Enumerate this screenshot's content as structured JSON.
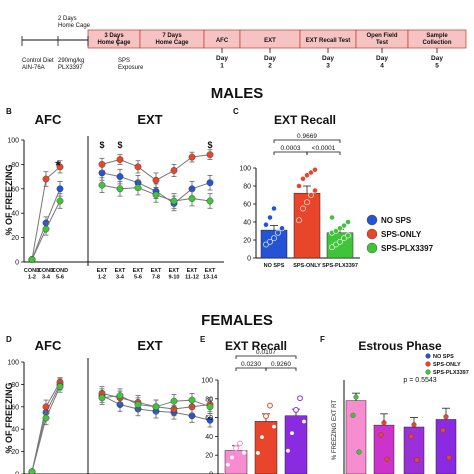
{
  "timeline": {
    "start_label": "Control Diet\nAIN-76A",
    "plx_label": "290mg/kg\nPLX3397",
    "sps_label": "SPS\nExposure",
    "above_labels": [
      "2 Days\nHome Cage"
    ],
    "stages": [
      "3 Days\nHome Cage",
      "7 Days\nHome Cage",
      "AFC",
      "EXT",
      "EXT Recall Test",
      "Open Field\nTest",
      "Sample\nCollection"
    ],
    "day_labels": [
      "Day\n1",
      "Day\n2",
      "Day\n3",
      "Day\n4",
      "Day\n5"
    ]
  },
  "sections": {
    "males": "MALES",
    "females": "FEMALES"
  },
  "panel_letters": {
    "b": "B",
    "c": "C",
    "d": "D",
    "e": "E",
    "f": "F"
  },
  "colors": {
    "no_sps": "#2453d6",
    "sps_only": "#e8452b",
    "sps_plx": "#3fc43a",
    "female_no_sps": "#f78cd0",
    "female_sps_only": "#e8452b",
    "female_sps_plx": "#8a2be2",
    "stage_fill": "#f6c3c3",
    "stage_border": "#c0392b"
  },
  "legend": [
    "NO SPS",
    "SPS-ONLY",
    "SPS-PLX3397"
  ],
  "chart_data": [
    {
      "type": "line",
      "panel": "B",
      "title_afc": "AFC",
      "title_ext": "EXT",
      "ylabel": "% OF FREEZING",
      "ylim": [
        0,
        100
      ],
      "yticks": [
        "0",
        "20",
        "40",
        "60",
        "80",
        "100"
      ],
      "afc_categories": [
        "COND\n1-2",
        "COND\n3-4",
        "COND\n5-6"
      ],
      "ext_categories": [
        "EXT\n1-2",
        "EXT\n3-4",
        "EXT\n5-6",
        "EXT\n7-8",
        "EXT\n9-10",
        "EXT\n11-12",
        "EXT\n13-14"
      ],
      "afc_annotations": [
        {
          "index": 1,
          "text": "*"
        }
      ],
      "ext_annotations": [
        {
          "index": 0,
          "text": "$"
        },
        {
          "index": 1,
          "text": "$"
        },
        {
          "index": 6,
          "text": "$"
        }
      ],
      "series": [
        {
          "name": "NO SPS",
          "color_key": "no_sps",
          "afc": [
            2,
            32,
            60
          ],
          "afc_err": [
            1,
            5,
            6
          ],
          "ext": [
            73,
            70,
            65,
            58,
            48,
            60,
            65
          ],
          "ext_err": [
            6,
            6,
            6,
            6,
            6,
            6,
            6
          ]
        },
        {
          "name": "SPS-ONLY",
          "color_key": "sps_only",
          "afc": [
            2,
            68,
            78
          ],
          "afc_err": [
            1,
            6,
            5
          ],
          "ext": [
            80,
            84,
            78,
            67,
            75,
            86,
            88
          ],
          "ext_err": [
            5,
            4,
            5,
            6,
            5,
            4,
            4
          ]
        },
        {
          "name": "SPS-PLX3397",
          "color_key": "sps_plx",
          "afc": [
            2,
            27,
            50
          ],
          "afc_err": [
            1,
            5,
            6
          ],
          "ext": [
            63,
            60,
            61,
            55,
            50,
            52,
            50
          ],
          "ext_err": [
            6,
            6,
            6,
            6,
            6,
            6,
            6
          ]
        }
      ]
    },
    {
      "type": "bar",
      "panel": "C",
      "title": "EXT Recall",
      "ylim": [
        0,
        100
      ],
      "yticks": [
        "0",
        "20",
        "40",
        "60",
        "80",
        "100"
      ],
      "categories": [
        "NO SPS",
        "SPS-ONLY",
        "SPS-PLX3397"
      ],
      "values": [
        31,
        72,
        28
      ],
      "errors": [
        5,
        8,
        4
      ],
      "color_keys": [
        "no_sps",
        "sps_only",
        "sps_plx"
      ],
      "points": [
        [
          15,
          18,
          22,
          28,
          33,
          37,
          45,
          55
        ],
        [
          42,
          55,
          62,
          70,
          75,
          80,
          88,
          92,
          95,
          98
        ],
        [
          12,
          15,
          18,
          22,
          25,
          28,
          30,
          33,
          36,
          40,
          45
        ]
      ],
      "brackets": [
        {
          "from": 0,
          "to": 2,
          "label": "0.9669"
        },
        {
          "from": 0,
          "to": 1,
          "label": "0.0003"
        },
        {
          "from": 1,
          "to": 2,
          "label": "<0.0001"
        }
      ]
    },
    {
      "type": "line",
      "panel": "D",
      "title_afc": "AFC",
      "title_ext": "EXT",
      "ylabel": "% OF FREEZING",
      "ylim": [
        0,
        100
      ],
      "yticks": [
        "0",
        "20",
        "40",
        "60",
        "80",
        "100"
      ],
      "series": [
        {
          "name": "NO SPS",
          "color_key": "no_sps",
          "afc": [
            2,
            55,
            80
          ],
          "afc_err": [
            1,
            6,
            5
          ],
          "ext": [
            70,
            62,
            58,
            56,
            55,
            52,
            48
          ],
          "ext_err": [
            6,
            6,
            6,
            6,
            6,
            6,
            6
          ]
        },
        {
          "name": "SPS-ONLY",
          "color_key": "sps_only",
          "afc": [
            2,
            60,
            82
          ],
          "afc_err": [
            1,
            6,
            4
          ],
          "ext": [
            72,
            68,
            64,
            60,
            58,
            60,
            62
          ],
          "ext_err": [
            6,
            6,
            6,
            6,
            6,
            6,
            6
          ]
        },
        {
          "name": "SPS-PLX3397",
          "color_key": "sps_plx",
          "afc": [
            2,
            50,
            78
          ],
          "afc_err": [
            1,
            6,
            5
          ],
          "ext": [
            68,
            70,
            62,
            60,
            65,
            66,
            60
          ],
          "ext_err": [
            6,
            6,
            6,
            6,
            6,
            6,
            6
          ]
        }
      ]
    },
    {
      "type": "bar",
      "panel": "E",
      "title": "EXT Recall",
      "ylim": [
        0,
        100
      ],
      "yticks": [
        "0",
        "20",
        "40",
        "60",
        "80",
        "100"
      ],
      "values": [
        25,
        56,
        62
      ],
      "errors": [
        5,
        8,
        7
      ],
      "color_keys": [
        "female_no_sps",
        "female_sps_only",
        "female_sps_plx"
      ],
      "brackets": [
        {
          "from": 0,
          "to": 2,
          "label": "0.0107"
        },
        {
          "from": 0,
          "to": 1,
          "label": "0.0230"
        },
        {
          "from": 1,
          "to": 2,
          "label": "0.9260"
        }
      ]
    },
    {
      "type": "bar",
      "panel": "F",
      "title": "Estrous Phase",
      "ylabel": "% FREEZING EXT RT",
      "annotation": "p = 0.5543",
      "legend": [
        "NO SPS",
        "SPS-ONLY",
        "SPS-PLX3397"
      ],
      "values": [
        78,
        52,
        50,
        58
      ],
      "errors": [
        8,
        12,
        10,
        12
      ],
      "fills": [
        "#f78cd0",
        "#cc33cc",
        "#9b30d9",
        "#8a2be2"
      ]
    }
  ]
}
